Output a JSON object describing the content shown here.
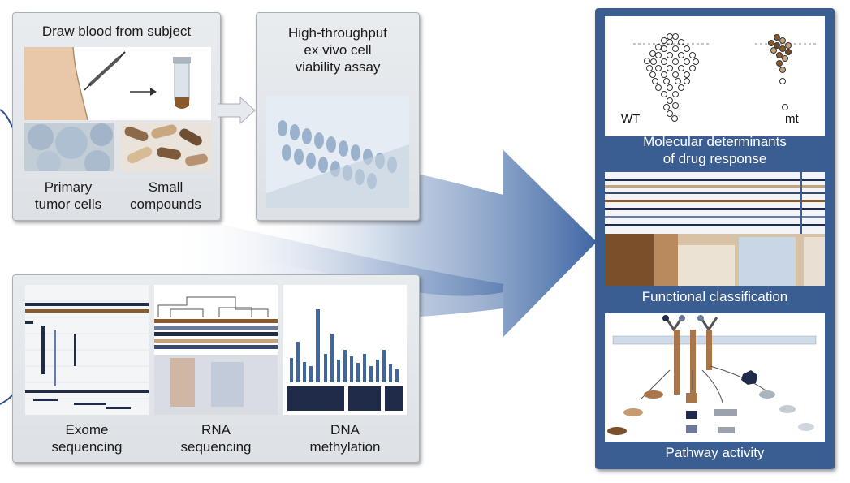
{
  "panels": {
    "sample": {
      "title": "Draw blood from subject",
      "primary_label": "Primary\ntumor cells",
      "compounds_label": "Small\ncompounds"
    },
    "assay": {
      "title": "High-throughput\nex vivo cell\nviability assay"
    },
    "omics": {
      "exome_label": "Exome\nsequencing",
      "rna_label": "RNA\nsequencing",
      "dna_label": "DNA\nmethylation"
    },
    "results": {
      "wt_label": "WT",
      "mt_label": "mt",
      "molecular_label": "Molecular determinants\nof drug response",
      "functional_label": "Functional classification",
      "pathway_label": "Pathway activity"
    }
  },
  "colors": {
    "panel_blue": "#3b5e92",
    "arrow_blue": "#3f67a4",
    "brown": "#a8764a",
    "navy": "#1f2b48"
  }
}
